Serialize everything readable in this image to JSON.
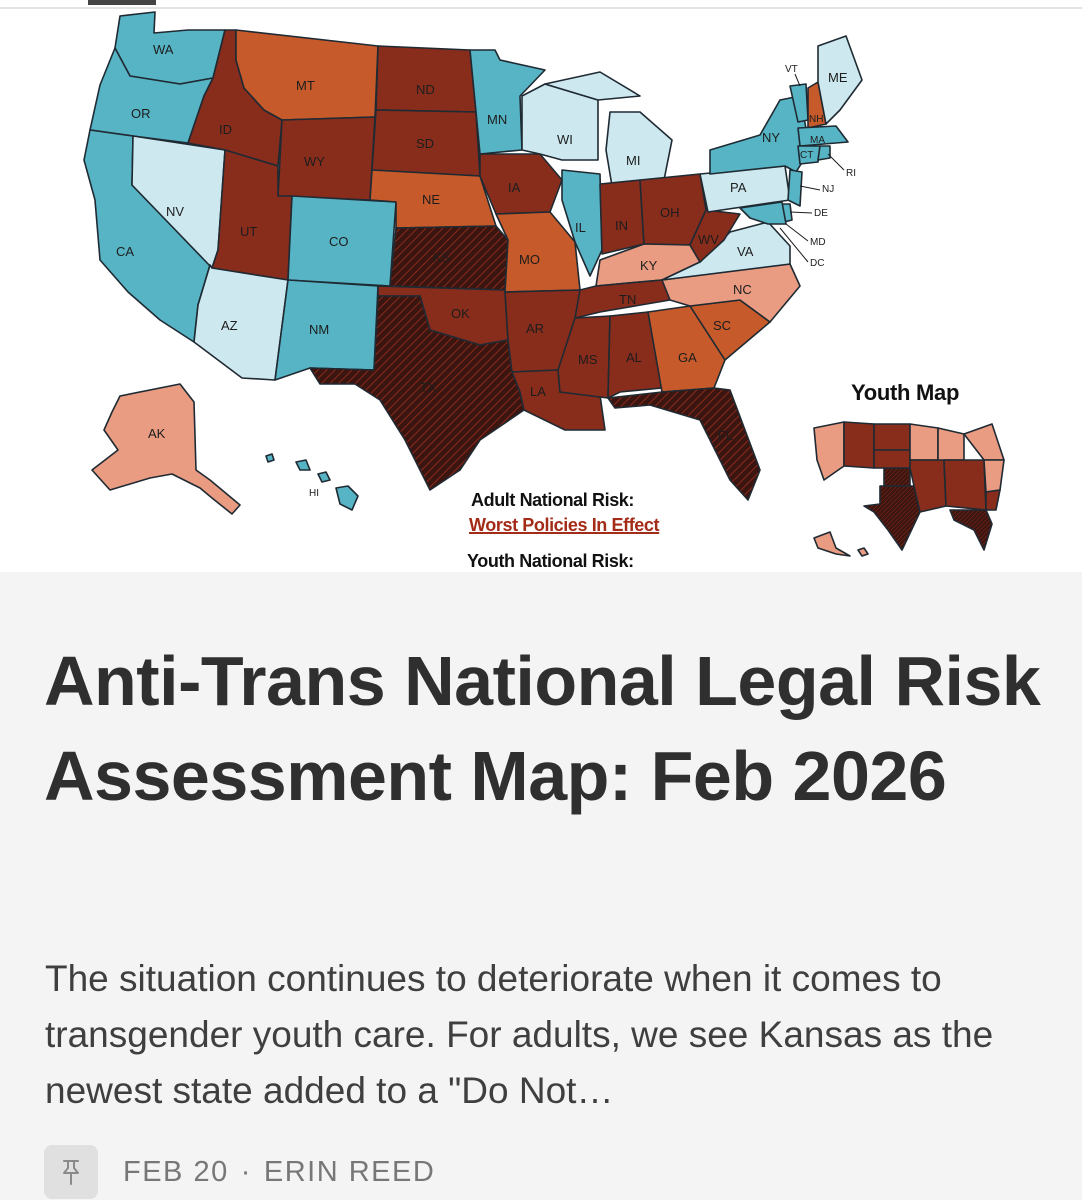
{
  "colors": {
    "teal": "#57b4c5",
    "light_blue": "#cde9ef",
    "salmon": "#e99c82",
    "orange": "#c65a2a",
    "dark_red": "#882c1c",
    "hatched": "#3b1510"
  },
  "map": {
    "state_labels": [
      "WA",
      "OR",
      "CA",
      "NV",
      "ID",
      "MT",
      "WY",
      "UT",
      "AZ",
      "CO",
      "NM",
      "ND",
      "SD",
      "NE",
      "KS",
      "OK",
      "TX",
      "MN",
      "IA",
      "MO",
      "AR",
      "LA",
      "WI",
      "IL",
      "MI",
      "IN",
      "OH",
      "KY",
      "TN",
      "MS",
      "AL",
      "GA",
      "FL",
      "SC",
      "NC",
      "VA",
      "WV",
      "PA",
      "NY",
      "VT",
      "NH",
      "ME",
      "MA",
      "CT",
      "RI",
      "NJ",
      "DE",
      "MD",
      "DC",
      "AK",
      "HI"
    ],
    "youth_map_title": "Youth Map",
    "adult_risk_label": "Adult National Risk:",
    "adult_risk_value": "Worst Policies In Effect",
    "youth_risk_label": "Youth National Risk:"
  },
  "article": {
    "title": "Anti-Trans National Legal Risk Assessment Map: Feb 2026",
    "excerpt": "The situation continues to deteriorate when it comes to transgender youth care. For adults, we see Kansas as the newest state added to a \"Do Not…",
    "date": "FEB 20",
    "separator": "·",
    "author": "ERIN REED",
    "pin_icon": "pin-icon"
  }
}
